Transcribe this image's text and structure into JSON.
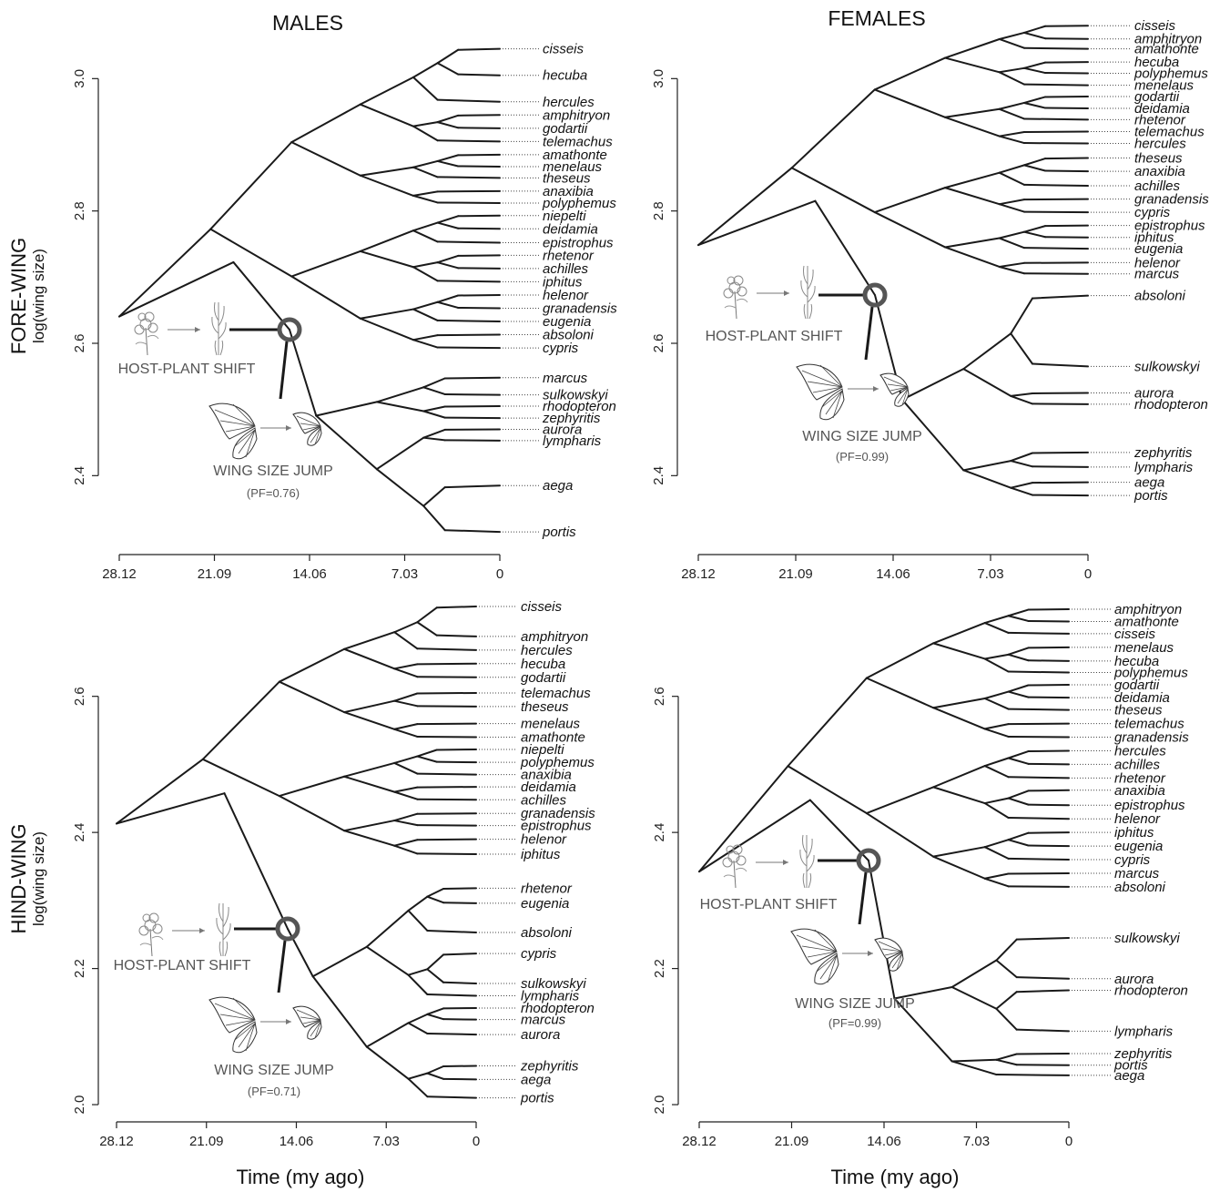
{
  "figure": {
    "col_titles": [
      "MALES",
      "FEMALES"
    ],
    "row_titles": [
      {
        "title": "FORE-WING",
        "sub": "log(wing size)"
      },
      {
        "title": "HIND-WING",
        "sub": "log(wing size)"
      }
    ],
    "xlabel": "Time (my ago)",
    "annotation_labels": {
      "host": "HOST-PLANT SHIFT",
      "jump": "WING SIZE JUMP"
    },
    "colors": {
      "branch": "#1a1a1a",
      "node_marker": "#555555"
    }
  },
  "chart_data": [
    {
      "type": "phylogram",
      "panel": "male-forewing",
      "x_ticks": [
        "28.12",
        "21.09",
        "14.06",
        "7.03",
        "0"
      ],
      "xlim": [
        28.12,
        0
      ],
      "y_ticks": [
        "2.4",
        "2.6",
        "2.8",
        "3.0"
      ],
      "ylim": [
        2.3,
        3.05
      ],
      "pf": "(PF=0.76)",
      "tips": [
        {
          "name": "cisseis",
          "y": 3.045
        },
        {
          "name": "hecuba",
          "y": 3.005
        },
        {
          "name": "hercules",
          "y": 2.965
        },
        {
          "name": "amphitryon",
          "y": 2.945
        },
        {
          "name": "godartii",
          "y": 2.925
        },
        {
          "name": "telemachus",
          "y": 2.905
        },
        {
          "name": "amathonte",
          "y": 2.885
        },
        {
          "name": "menelaus",
          "y": 2.867
        },
        {
          "name": "theseus",
          "y": 2.85
        },
        {
          "name": "anaxibia",
          "y": 2.83
        },
        {
          "name": "polyphemus",
          "y": 2.812
        },
        {
          "name": "niepelti",
          "y": 2.793
        },
        {
          "name": "deidamia",
          "y": 2.773
        },
        {
          "name": "epistrophus",
          "y": 2.752
        },
        {
          "name": "rhetenor",
          "y": 2.733
        },
        {
          "name": "achilles",
          "y": 2.713
        },
        {
          "name": "iphitus",
          "y": 2.693
        },
        {
          "name": "helenor",
          "y": 2.673
        },
        {
          "name": "granadensis",
          "y": 2.653
        },
        {
          "name": "eugenia",
          "y": 2.633
        },
        {
          "name": "absoloni",
          "y": 2.613
        },
        {
          "name": "cypris",
          "y": 2.593
        },
        {
          "name": "marcus",
          "y": 2.548
        },
        {
          "name": "sulkowskyi",
          "y": 2.522
        },
        {
          "name": "rhodopteron",
          "y": 2.505
        },
        {
          "name": "zephyritis",
          "y": 2.487
        },
        {
          "name": "aurora",
          "y": 2.47
        },
        {
          "name": "lympharis",
          "y": 2.453
        },
        {
          "name": "aega",
          "y": 2.385
        },
        {
          "name": "portis",
          "y": 2.315
        }
      ]
    },
    {
      "type": "phylogram",
      "panel": "female-forewing",
      "x_ticks": [
        "28.12",
        "21.09",
        "14.06",
        "7.03",
        "0"
      ],
      "xlim": [
        28.12,
        0
      ],
      "y_ticks": [
        "2.4",
        "2.6",
        "2.8",
        "3.0"
      ],
      "ylim": [
        2.3,
        3.05
      ],
      "pf": "(PF=0.99)",
      "tips": [
        {
          "name": "cisseis",
          "y": 3.08
        },
        {
          "name": "amphitryon",
          "y": 3.06
        },
        {
          "name": "amathonte",
          "y": 3.045
        },
        {
          "name": "hecuba",
          "y": 3.025
        },
        {
          "name": "polyphemus",
          "y": 3.008
        },
        {
          "name": "menelaus",
          "y": 2.99
        },
        {
          "name": "godartii",
          "y": 2.973
        },
        {
          "name": "deidamia",
          "y": 2.955
        },
        {
          "name": "rhetenor",
          "y": 2.938
        },
        {
          "name": "telemachus",
          "y": 2.92
        },
        {
          "name": "hercules",
          "y": 2.902
        },
        {
          "name": "theseus",
          "y": 2.88
        },
        {
          "name": "anaxibia",
          "y": 2.86
        },
        {
          "name": "achilles",
          "y": 2.838
        },
        {
          "name": "granadensis",
          "y": 2.818
        },
        {
          "name": "cypris",
          "y": 2.798
        },
        {
          "name": "epistrophus",
          "y": 2.778
        },
        {
          "name": "iphitus",
          "y": 2.76
        },
        {
          "name": "eugenia",
          "y": 2.743
        },
        {
          "name": "helenor",
          "y": 2.722
        },
        {
          "name": "marcus",
          "y": 2.705
        },
        {
          "name": "absoloni",
          "y": 2.672
        },
        {
          "name": "sulkowskyi",
          "y": 2.565
        },
        {
          "name": "aurora",
          "y": 2.525
        },
        {
          "name": "rhodopteron",
          "y": 2.508
        },
        {
          "name": "zephyritis",
          "y": 2.435
        },
        {
          "name": "lympharis",
          "y": 2.413
        },
        {
          "name": "aega",
          "y": 2.39
        },
        {
          "name": "portis",
          "y": 2.37
        }
      ]
    },
    {
      "type": "phylogram",
      "panel": "male-hindwing",
      "x_ticks": [
        "28.12",
        "21.09",
        "14.06",
        "7.03",
        "0"
      ],
      "xlim": [
        28.12,
        0
      ],
      "y_ticks": [
        "2.0",
        "2.2",
        "2.4",
        "2.6"
      ],
      "ylim": [
        1.98,
        2.72
      ],
      "pf": "(PF=0.71)",
      "tips": [
        {
          "name": "cisseis",
          "y": 2.732
        },
        {
          "name": "amphitryon",
          "y": 2.688
        },
        {
          "name": "hercules",
          "y": 2.668
        },
        {
          "name": "hecuba",
          "y": 2.648
        },
        {
          "name": "godartii",
          "y": 2.628
        },
        {
          "name": "telemachus",
          "y": 2.605
        },
        {
          "name": "theseus",
          "y": 2.585
        },
        {
          "name": "menelaus",
          "y": 2.56
        },
        {
          "name": "amathonte",
          "y": 2.54
        },
        {
          "name": "niepelti",
          "y": 2.522
        },
        {
          "name": "polyphemus",
          "y": 2.503
        },
        {
          "name": "anaxibia",
          "y": 2.485
        },
        {
          "name": "deidamia",
          "y": 2.467
        },
        {
          "name": "achilles",
          "y": 2.448
        },
        {
          "name": "granadensis",
          "y": 2.428
        },
        {
          "name": "epistrophus",
          "y": 2.41
        },
        {
          "name": "helenor",
          "y": 2.39
        },
        {
          "name": "iphitus",
          "y": 2.368
        },
        {
          "name": "rhetenor",
          "y": 2.318
        },
        {
          "name": "eugenia",
          "y": 2.296
        },
        {
          "name": "absoloni",
          "y": 2.253
        },
        {
          "name": "cypris",
          "y": 2.222
        },
        {
          "name": "sulkowskyi",
          "y": 2.178
        },
        {
          "name": "lympharis",
          "y": 2.16
        },
        {
          "name": "rhodopteron",
          "y": 2.142
        },
        {
          "name": "marcus",
          "y": 2.125
        },
        {
          "name": "aurora",
          "y": 2.103
        },
        {
          "name": "zephyritis",
          "y": 2.057
        },
        {
          "name": "aega",
          "y": 2.037
        },
        {
          "name": "portis",
          "y": 2.01
        }
      ]
    },
    {
      "type": "phylogram",
      "panel": "female-hindwing",
      "x_ticks": [
        "28.12",
        "21.09",
        "14.06",
        "7.03",
        "0"
      ],
      "xlim": [
        28.12,
        0
      ],
      "y_ticks": [
        "2.0",
        "2.2",
        "2.4",
        "2.6"
      ],
      "ylim": [
        1.98,
        2.72
      ],
      "pf": "(PF=0.99)",
      "tips": [
        {
          "name": "amphitryon",
          "y": 2.728
        },
        {
          "name": "amathonte",
          "y": 2.71
        },
        {
          "name": "cisseis",
          "y": 2.692
        },
        {
          "name": "menelaus",
          "y": 2.672
        },
        {
          "name": "hecuba",
          "y": 2.652
        },
        {
          "name": "polyphemus",
          "y": 2.635
        },
        {
          "name": "godartii",
          "y": 2.617
        },
        {
          "name": "deidamia",
          "y": 2.598
        },
        {
          "name": "theseus",
          "y": 2.58
        },
        {
          "name": "telemachus",
          "y": 2.56
        },
        {
          "name": "granadensis",
          "y": 2.54
        },
        {
          "name": "hercules",
          "y": 2.52
        },
        {
          "name": "achilles",
          "y": 2.5
        },
        {
          "name": "rhetenor",
          "y": 2.48
        },
        {
          "name": "anaxibia",
          "y": 2.462
        },
        {
          "name": "epistrophus",
          "y": 2.44
        },
        {
          "name": "helenor",
          "y": 2.42
        },
        {
          "name": "iphitus",
          "y": 2.4
        },
        {
          "name": "eugenia",
          "y": 2.38
        },
        {
          "name": "cypris",
          "y": 2.36
        },
        {
          "name": "marcus",
          "y": 2.34
        },
        {
          "name": "absoloni",
          "y": 2.32
        },
        {
          "name": "sulkowskyi",
          "y": 2.245
        },
        {
          "name": "aurora",
          "y": 2.185
        },
        {
          "name": "rhodopteron",
          "y": 2.168
        },
        {
          "name": "lympharis",
          "y": 2.108
        },
        {
          "name": "zephyritis",
          "y": 2.075
        },
        {
          "name": "portis",
          "y": 2.058
        },
        {
          "name": "aega",
          "y": 2.043
        }
      ]
    }
  ]
}
